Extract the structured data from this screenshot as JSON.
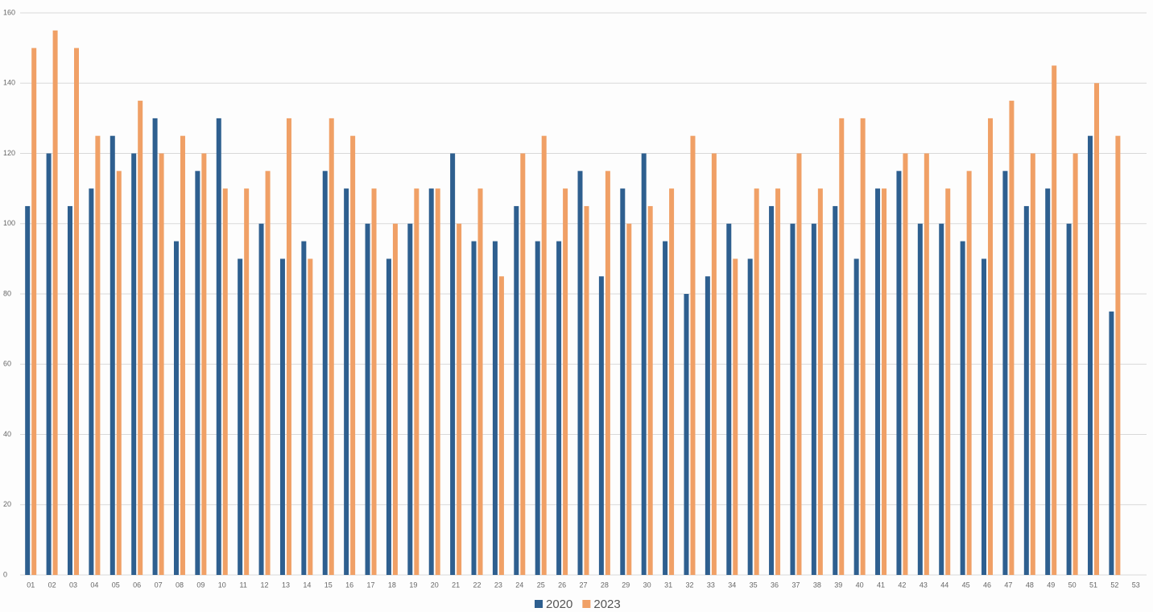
{
  "chart_data": {
    "type": "bar",
    "categories": [
      "01",
      "02",
      "03",
      "04",
      "05",
      "06",
      "07",
      "08",
      "09",
      "10",
      "11",
      "12",
      "13",
      "14",
      "15",
      "16",
      "17",
      "18",
      "19",
      "20",
      "21",
      "22",
      "23",
      "24",
      "25",
      "26",
      "27",
      "28",
      "29",
      "30",
      "31",
      "32",
      "33",
      "34",
      "35",
      "36",
      "37",
      "38",
      "39",
      "40",
      "41",
      "42",
      "43",
      "44",
      "45",
      "46",
      "47",
      "48",
      "49",
      "50",
      "51",
      "52",
      "53"
    ],
    "series": [
      {
        "name": "2020",
        "color": "#2e5f8f",
        "values": [
          105,
          120,
          105,
          110,
          125,
          120,
          130,
          95,
          115,
          130,
          90,
          100,
          90,
          95,
          115,
          110,
          100,
          90,
          100,
          110,
          120,
          95,
          95,
          105,
          95,
          95,
          115,
          85,
          110,
          120,
          95,
          80,
          85,
          100,
          90,
          105,
          100,
          100,
          105,
          90,
          110,
          115,
          100,
          100,
          95,
          90,
          115,
          105,
          110,
          100,
          125,
          75,
          null
        ]
      },
      {
        "name": "2023",
        "color": "#f0a066",
        "values": [
          150,
          155,
          150,
          125,
          115,
          135,
          120,
          125,
          120,
          110,
          110,
          115,
          130,
          90,
          130,
          125,
          110,
          100,
          110,
          110,
          100,
          110,
          85,
          120,
          125,
          110,
          105,
          115,
          100,
          105,
          110,
          125,
          120,
          90,
          110,
          110,
          120,
          110,
          130,
          130,
          110,
          120,
          120,
          110,
          115,
          130,
          135,
          120,
          145,
          120,
          140,
          125,
          null
        ]
      }
    ],
    "ylim": [
      0,
      160
    ],
    "yticks": [
      0,
      20,
      40,
      60,
      80,
      100,
      120,
      140,
      160
    ],
    "grid": true,
    "legend": "bottom"
  }
}
